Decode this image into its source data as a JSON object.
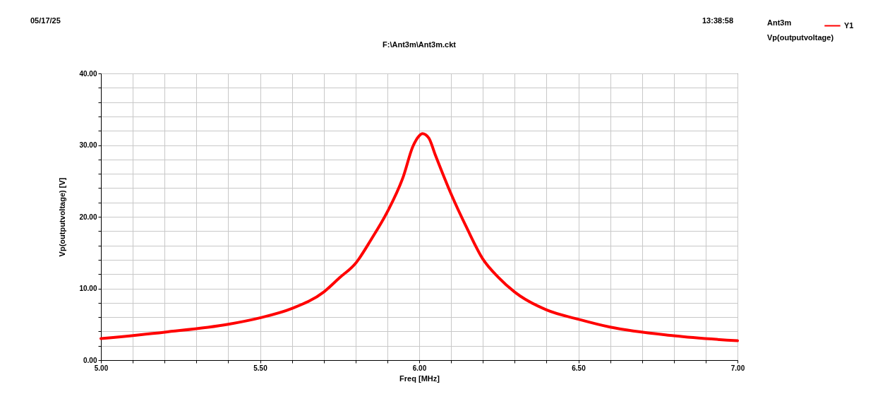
{
  "chart_data": {
    "type": "line",
    "title": "F:\\Ant3m\\Ant3m.ckt",
    "xlabel": "Freq [MHz]",
    "ylabel": "Vp(outputvoltage) [V]",
    "legend_title": "Ant3m",
    "legend": "top right",
    "grid": true,
    "marker": "none",
    "line_style": "solid",
    "annotations": [
      "05/17/25",
      "13:38:58",
      "Vp(outputvoltage)"
    ],
    "xlim": [
      5,
      7
    ],
    "ylim": [
      0,
      40
    ],
    "xticks": [
      {
        "value": 5,
        "label": "5.00"
      },
      {
        "value": 5.1,
        "label": null
      },
      {
        "value": 5.2,
        "label": null
      },
      {
        "value": 5.3,
        "label": null
      },
      {
        "value": 5.4,
        "label": null
      },
      {
        "value": 5.5,
        "label": "5.50"
      },
      {
        "value": 5.6,
        "label": null
      },
      {
        "value": 5.7,
        "label": null
      },
      {
        "value": 5.8,
        "label": null
      },
      {
        "value": 5.9,
        "label": null
      },
      {
        "value": 6,
        "label": "6.00"
      },
      {
        "value": 6.1,
        "label": null
      },
      {
        "value": 6.2,
        "label": null
      },
      {
        "value": 6.3,
        "label": null
      },
      {
        "value": 6.4,
        "label": null
      },
      {
        "value": 6.5,
        "label": "6.50"
      },
      {
        "value": 6.6,
        "label": null
      },
      {
        "value": 6.7,
        "label": null
      },
      {
        "value": 6.8,
        "label": null
      },
      {
        "value": 6.9,
        "label": null
      },
      {
        "value": 7,
        "label": "7.00"
      }
    ],
    "yticks": [
      {
        "value": 0,
        "label": "0.00"
      },
      {
        "value": 2,
        "label": null
      },
      {
        "value": 4,
        "label": null
      },
      {
        "value": 6,
        "label": null
      },
      {
        "value": 8,
        "label": null
      },
      {
        "value": 10,
        "label": "10.00"
      },
      {
        "value": 12,
        "label": null
      },
      {
        "value": 14,
        "label": null
      },
      {
        "value": 16,
        "label": null
      },
      {
        "value": 18,
        "label": null
      },
      {
        "value": 20,
        "label": "20.00"
      },
      {
        "value": 22,
        "label": null
      },
      {
        "value": 24,
        "label": null
      },
      {
        "value": 26,
        "label": null
      },
      {
        "value": 28,
        "label": null
      },
      {
        "value": 30,
        "label": "30.00"
      },
      {
        "value": 32,
        "label": null
      },
      {
        "value": 34,
        "label": null
      },
      {
        "value": 36,
        "label": null
      },
      {
        "value": 38,
        "label": null
      },
      {
        "value": 40,
        "label": "40.00"
      }
    ],
    "x": [
      5,
      5.2,
      5.4,
      5.5,
      5.6,
      5.7,
      5.75,
      5.8,
      5.85,
      5.9,
      5.95,
      5.98,
      6,
      6.01,
      6.03,
      6.05,
      6.1,
      6.15,
      6.2,
      6.25,
      6.3,
      6.4,
      6.5,
      6.6,
      6.8,
      7
    ],
    "series": [
      {
        "name": "Y1",
        "color": "#ff0000",
        "values": [
          3.0,
          3.9,
          5.0,
          5.9,
          7.2,
          9.5,
          11.5,
          13.5,
          16.9,
          20.7,
          25.6,
          29.8,
          31.3,
          31.6,
          31.0,
          28.7,
          23.2,
          18.4,
          14.1,
          11.5,
          9.5,
          7.0,
          5.7,
          4.6,
          3.4,
          2.7
        ]
      }
    ]
  }
}
